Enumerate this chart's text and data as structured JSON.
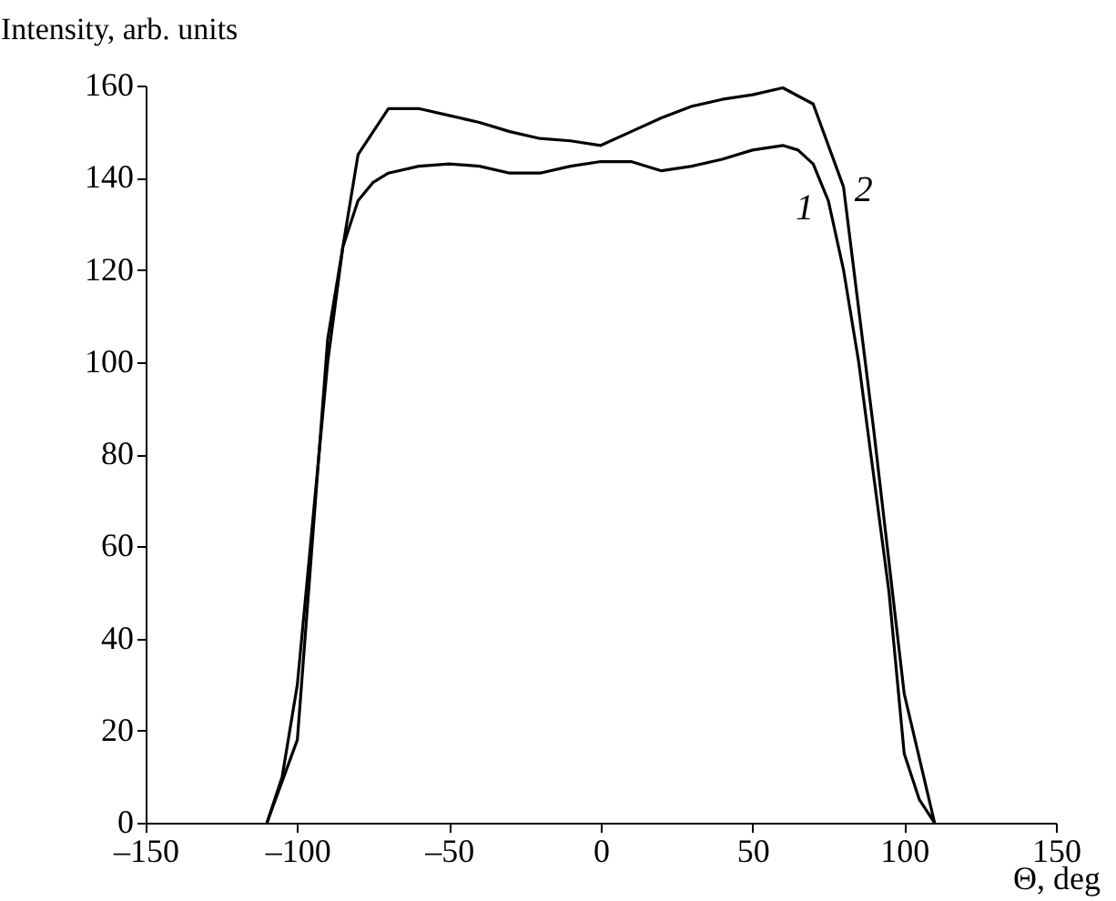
{
  "chart_data": {
    "type": "line",
    "xlabel": "Θ, deg",
    "ylabel": "Intensity, arb. units",
    "xlim": [
      -150,
      150
    ],
    "xticks": [
      {
        "value": -150,
        "label": "–150"
      },
      {
        "value": -100,
        "label": "–100"
      },
      {
        "value": -50,
        "label": "–50"
      },
      0,
      50,
      100,
      150
    ],
    "ylim": [
      0,
      160
    ],
    "yticks": [
      0,
      20,
      40,
      60,
      80,
      100,
      120,
      140,
      160
    ],
    "grid": false,
    "marker": "none",
    "line_style": "solid",
    "series": [
      {
        "name": "1",
        "color": "#000000",
        "x": [
          -110,
          -105,
          -100,
          -95,
          -90,
          -85,
          -80,
          -75,
          -70,
          -60,
          -50,
          -40,
          -30,
          -20,
          -10,
          0,
          10,
          20,
          30,
          40,
          50,
          60,
          65,
          70,
          75,
          80,
          85,
          90,
          95,
          100,
          105,
          110
        ],
        "values": [
          0,
          10,
          30,
          65,
          100,
          125,
          135,
          139,
          141,
          142.5,
          143,
          142.5,
          141,
          141,
          142.5,
          143.5,
          143.5,
          141.5,
          142.5,
          144,
          146,
          147,
          146,
          143,
          135,
          120,
          100,
          75,
          50,
          15,
          5,
          0
        ]
      },
      {
        "name": "2",
        "color": "#000000",
        "x": [
          -110,
          -100,
          -90,
          -80,
          -70,
          -60,
          -50,
          -40,
          -30,
          -20,
          -10,
          0,
          10,
          20,
          30,
          40,
          50,
          60,
          70,
          80,
          90,
          100,
          110
        ],
        "values": [
          0,
          18,
          105,
          145,
          155,
          155,
          153.5,
          152,
          150,
          148.5,
          148,
          147,
          150,
          153,
          155.5,
          157,
          158,
          159.5,
          156,
          138,
          85,
          28,
          0
        ]
      }
    ]
  }
}
